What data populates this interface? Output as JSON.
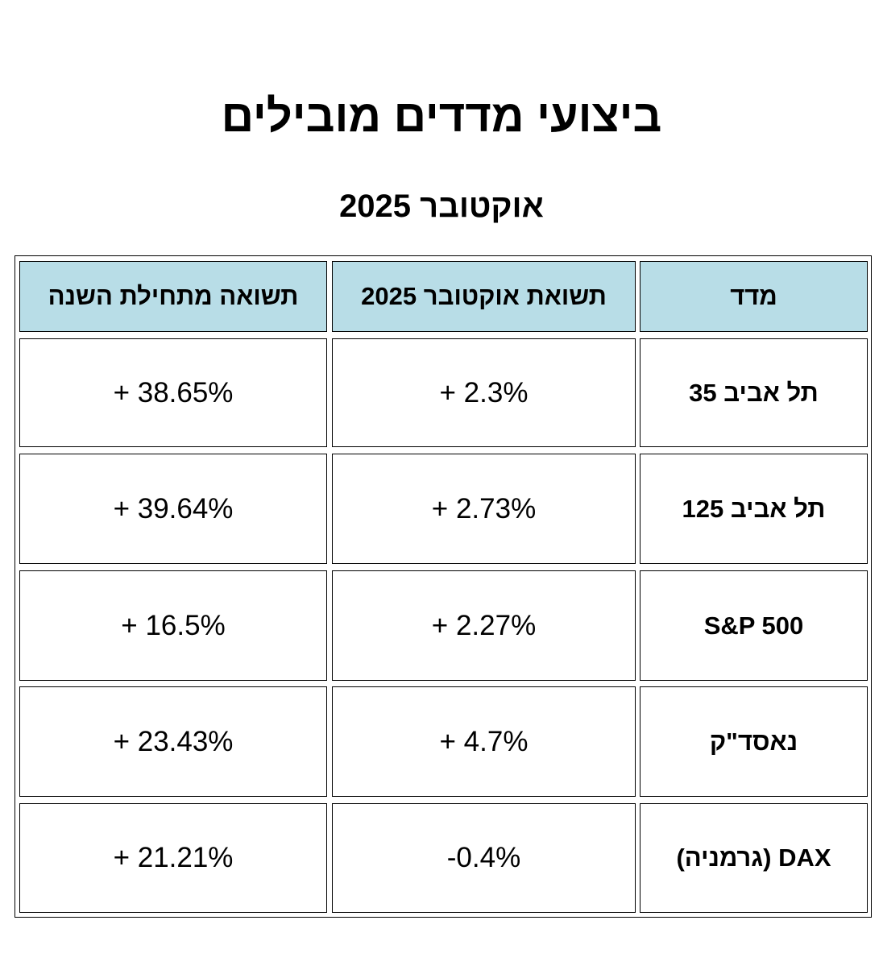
{
  "page": {
    "title": "ביצועי מדדים מובילים",
    "subtitle": "אוקטובר 2025"
  },
  "table": {
    "headers": {
      "index": "מדד",
      "october_return": "תשואת אוקטובר 2025",
      "ytd_return": "תשואה מתחילת השנה"
    },
    "rows": [
      {
        "index": "תל אביב 35",
        "october_return": "+ 2.3%",
        "ytd_return": "+ 38.65%"
      },
      {
        "index": "תל אביב 125",
        "october_return": "+ 2.73%",
        "ytd_return": "+ 39.64%"
      },
      {
        "index": "S&P 500",
        "october_return": "+ 2.27%",
        "ytd_return": "+ 16.5%"
      },
      {
        "index": "נאסד\"ק",
        "october_return": "+ 4.7%",
        "ytd_return": "+ 23.43%"
      },
      {
        "index": "DAX (גרמניה)",
        "october_return": "-0.4%",
        "ytd_return": "+ 21.21%"
      }
    ]
  },
  "colors": {
    "header_background": "#b8dde7",
    "border": "#000000",
    "text": "#000000"
  }
}
